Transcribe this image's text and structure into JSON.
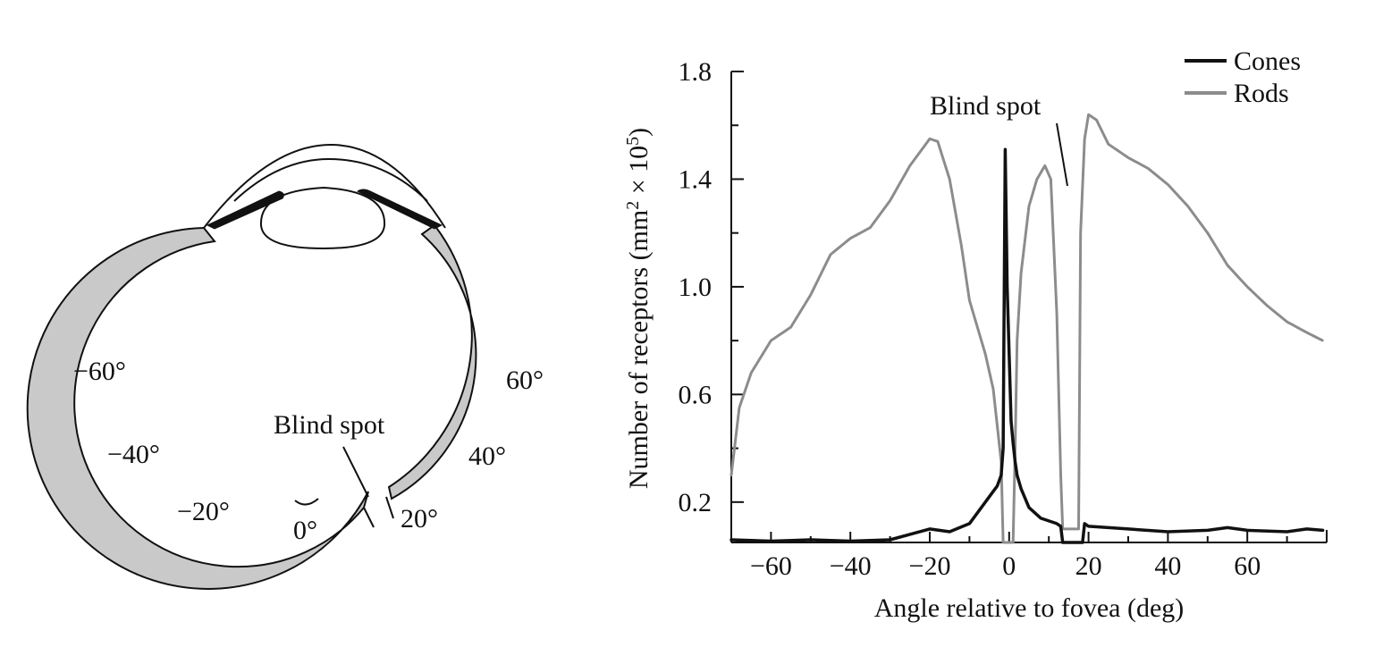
{
  "eye_diagram": {
    "angle_labels": {
      "neg60": "−60°",
      "neg40": "−40°",
      "neg20": "−20°",
      "zero": "0°",
      "pos20": "20°",
      "pos40": "40°",
      "pos60": "60°"
    },
    "blind_spot_label": "Blind spot",
    "colors": {
      "retina_fill": "#c9c9c9",
      "iris": "#111111",
      "outline": "#111111"
    }
  },
  "chart_data": {
    "type": "line",
    "title": "",
    "xlabel": "Angle relative to fovea (deg)",
    "ylabel": "Number of receptors (mm",
    "ylabel_sup1": "2",
    "ylabel_mid": " × 10",
    "ylabel_sup2": "5",
    "ylabel_end": ")",
    "xlim": [
      -70,
      80
    ],
    "ylim": [
      0.05,
      1.8
    ],
    "xticks": [
      -60,
      -40,
      -20,
      0,
      20,
      40,
      60
    ],
    "xtick_labels": [
      "−60",
      "−40",
      "−20",
      "0",
      "20",
      "40",
      "60"
    ],
    "yticks": [
      0.2,
      0.6,
      1.0,
      1.4,
      1.8
    ],
    "ytick_labels": [
      "0.2",
      "0.6",
      "1.0",
      "1.4",
      "1.8"
    ],
    "grid": false,
    "legend_position": "top-right",
    "annotation": "Blind spot",
    "series": [
      {
        "name": "Cones",
        "color": "#111111",
        "x": [
          -70,
          -60,
          -50,
          -40,
          -30,
          -20,
          -15,
          -10,
          -7,
          -5,
          -3,
          -2,
          -1.5,
          -1,
          -0.5,
          0,
          0.5,
          1,
          1.5,
          2,
          3,
          5,
          8,
          10,
          12,
          13,
          13.5,
          18.5,
          19,
          20,
          30,
          40,
          50,
          55,
          60,
          70,
          75,
          79
        ],
        "y": [
          0.06,
          0.055,
          0.06,
          0.055,
          0.06,
          0.1,
          0.09,
          0.12,
          0.18,
          0.22,
          0.26,
          0.3,
          0.4,
          1.51,
          1.0,
          0.75,
          0.5,
          0.42,
          0.35,
          0.3,
          0.25,
          0.18,
          0.14,
          0.13,
          0.12,
          0.11,
          0.05,
          0.05,
          0.12,
          0.11,
          0.1,
          0.09,
          0.095,
          0.105,
          0.095,
          0.09,
          0.1,
          0.095
        ]
      },
      {
        "name": "Rods",
        "color": "#8c8c8c",
        "x": [
          -70,
          -68,
          -65,
          -60,
          -55,
          -50,
          -45,
          -40,
          -35,
          -30,
          -25,
          -20,
          -18,
          -15,
          -12,
          -10,
          -8,
          -6,
          -4,
          -2,
          -1.5,
          -1,
          0,
          0.5,
          1,
          1.5,
          2,
          3,
          5,
          7,
          9,
          10.5,
          12,
          13,
          13.5,
          17.5,
          18,
          19,
          20,
          22,
          25,
          30,
          35,
          40,
          45,
          50,
          55,
          60,
          65,
          70,
          75,
          79
        ],
        "y": [
          0.3,
          0.55,
          0.68,
          0.8,
          0.85,
          0.97,
          1.12,
          1.18,
          1.22,
          1.32,
          1.45,
          1.55,
          1.54,
          1.4,
          1.15,
          0.95,
          0.85,
          0.75,
          0.62,
          0.35,
          0.05,
          0.05,
          0.05,
          0.05,
          0.05,
          0.4,
          0.8,
          1.05,
          1.3,
          1.4,
          1.45,
          1.4,
          0.9,
          0.3,
          0.1,
          0.1,
          1.2,
          1.55,
          1.64,
          1.62,
          1.53,
          1.48,
          1.44,
          1.38,
          1.3,
          1.2,
          1.08,
          1.0,
          0.93,
          0.87,
          0.83,
          0.8
        ]
      }
    ]
  }
}
